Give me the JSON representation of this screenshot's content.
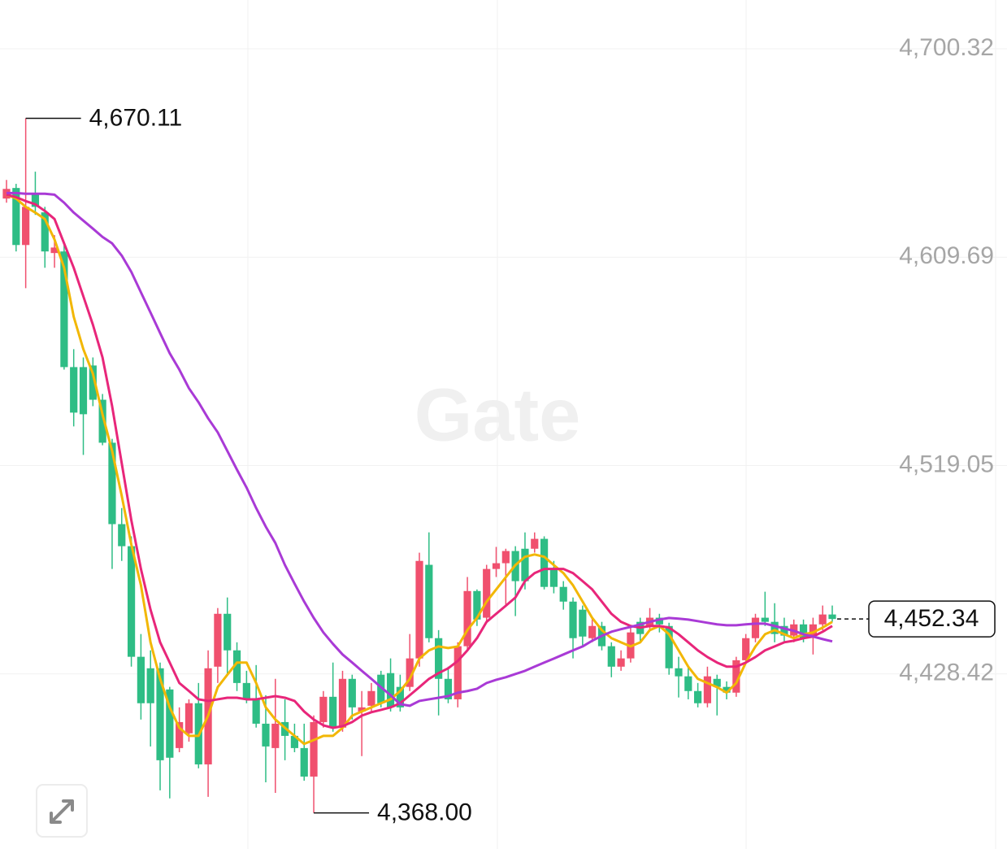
{
  "chart_data": {
    "type": "candlestick",
    "watermark": "Gate",
    "up_color": "#f0506e",
    "down_color": "#2ebd85",
    "grid": true,
    "ylim": [
      4352.3,
      4721.56
    ],
    "yticks": [
      {
        "value": 4428.42,
        "label": "4,428.42"
      },
      {
        "value": 4519.05,
        "label": "4,519.05"
      },
      {
        "value": 4609.69,
        "label": "4,609.69"
      },
      {
        "value": 4700.32,
        "label": "4,700.32"
      }
    ],
    "candles": {
      "open": [
        4635.2,
        4639.8,
        4615.0,
        4637.0,
        4629.2,
        4611.5,
        4612.2,
        4561.9,
        4561.9,
        4562.6,
        4547.7,
        4529.0,
        4493.6,
        4484.0,
        4435.9,
        4430.9,
        4430.9,
        4421.7,
        4396.2,
        4402.6,
        4415.7,
        4389.1,
        4431.6,
        4454.6,
        4438.7,
        4424.5,
        4417.4,
        4406.8,
        4396.2,
        4407.5,
        4401.5,
        4396.2,
        4383.8,
        4407.5,
        4418.5,
        4405.1,
        4426.3,
        4412.1,
        4414.6,
        4428.1,
        4428.8,
        4422.8,
        4422.8,
        4435.2,
        4475.9,
        4444.0,
        4426.3,
        4417.4,
        4440.5,
        4464.5,
        4452.9,
        4474.1,
        4476.6,
        4481.9,
        4482.9,
        4482.9,
        4487.2,
        4474.1,
        4466.3,
        4459.9,
        4456.4,
        4444.0,
        4449.3,
        4440.5,
        4431.6,
        4435.2,
        4451.1,
        4449.3,
        4452.9,
        4449.3,
        4430.9,
        4427.4,
        4421.0,
        4415.7,
        4426.3,
        4422.8,
        4420.3,
        4434.4,
        4444.0,
        4452.9,
        4451.1,
        4449.3,
        4445.1,
        4450.0,
        4445.1,
        4450.0,
        4454.3
      ],
      "high": [
        4643.3,
        4641.6,
        4670.11,
        4646.9,
        4631.6,
        4619.3,
        4615.7,
        4569.7,
        4566.1,
        4566.1,
        4550.2,
        4530.7,
        4500.6,
        4488.3,
        4445.8,
        4438.7,
        4433.4,
        4422.8,
        4413.9,
        4417.4,
        4424.5,
        4438.7,
        4457.1,
        4461.7,
        4442.2,
        4429.8,
        4432.3,
        4419.2,
        4426.3,
        4417.4,
        4406.8,
        4406.8,
        4410.4,
        4421.0,
        4433.4,
        4429.8,
        4428.1,
        4421.0,
        4424.5,
        4429.8,
        4435.2,
        4428.1,
        4445.8,
        4481.2,
        4490.0,
        4447.5,
        4431.6,
        4442.2,
        4470.6,
        4465.2,
        4475.9,
        4483.7,
        4482.9,
        4484.0,
        4490.0,
        4490.0,
        4488.3,
        4477.6,
        4468.8,
        4461.7,
        4458.2,
        4452.9,
        4451.1,
        4442.2,
        4438.7,
        4449.3,
        4452.9,
        4457.1,
        4454.6,
        4450.7,
        4435.9,
        4431.6,
        4424.5,
        4431.6,
        4428.1,
        4425.2,
        4435.9,
        4445.8,
        4454.6,
        4464.2,
        4459.2,
        4452.9,
        4452.1,
        4452.1,
        4452.9,
        4458.2,
        4458.2
      ],
      "low": [
        4633.4,
        4612.2,
        4596.2,
        4628.1,
        4605.1,
        4605.1,
        4560.8,
        4536.1,
        4523.7,
        4544.9,
        4527.9,
        4474.1,
        4477.6,
        4431.6,
        4408.6,
        4396.9,
        4377.8,
        4374.3,
        4394.4,
        4399.0,
        4387.4,
        4375.0,
        4424.5,
        4428.1,
        4421.0,
        4415.7,
        4405.1,
        4381.3,
        4376.7,
        4390.9,
        4394.4,
        4382.0,
        4368.0,
        4405.1,
        4403.3,
        4403.3,
        4408.6,
        4392.7,
        4412.1,
        4413.9,
        4412.1,
        4412.1,
        4421.0,
        4431.6,
        4442.2,
        4410.4,
        4415.7,
        4413.9,
        4438.7,
        4449.3,
        4451.1,
        4470.6,
        4458.2,
        4453.6,
        4465.2,
        4481.2,
        4465.2,
        4463.5,
        4456.4,
        4435.2,
        4440.5,
        4442.2,
        4438.7,
        4427.0,
        4429.8,
        4433.4,
        4442.2,
        4447.5,
        4446.5,
        4428.1,
        4418.2,
        4417.4,
        4413.9,
        4413.9,
        4410.4,
        4417.4,
        4418.5,
        4433.4,
        4442.2,
        4449.3,
        4442.2,
        4442.2,
        4442.2,
        4442.2,
        4436.9,
        4447.5,
        4451.1
      ],
      "close": [
        4639.4,
        4615.0,
        4631.6,
        4631.6,
        4612.2,
        4613.9,
        4561.9,
        4542.1,
        4541.4,
        4547.7,
        4529.0,
        4493.6,
        4484.0,
        4435.9,
        4415.7,
        4415.7,
        4390.9,
        4392.0,
        4407.5,
        4415.7,
        4389.1,
        4430.9,
        4454.6,
        4438.7,
        4424.5,
        4417.4,
        4406.8,
        4396.9,
        4406.8,
        4401.5,
        4396.2,
        4383.8,
        4407.5,
        4418.5,
        4405.1,
        4426.3,
        4413.9,
        4413.9,
        4421.0,
        4415.7,
        4413.9,
        4413.9,
        4435.2,
        4477.6,
        4444.0,
        4426.3,
        4417.4,
        4440.5,
        4464.5,
        4452.1,
        4474.1,
        4476.6,
        4481.9,
        4468.8,
        4468.8,
        4487.2,
        4466.3,
        4466.3,
        4459.9,
        4444.0,
        4444.7,
        4449.3,
        4440.5,
        4431.6,
        4435.2,
        4446.5,
        4445.8,
        4452.9,
        4450.0,
        4430.9,
        4427.4,
        4421.0,
        4415.7,
        4427.4,
        4422.8,
        4420.3,
        4434.4,
        4444.0,
        4452.9,
        4451.1,
        4445.8,
        4445.1,
        4450.0,
        4444.0,
        4450.0,
        4454.3,
        4452.34
      ]
    },
    "lines": [
      {
        "color": "#f2b705",
        "values": [
          4636.9,
          4635.2,
          4631.6,
          4629.1,
          4626.3,
          4617.4,
          4605.1,
          4583.8,
          4569.7,
          4559.0,
          4541.3,
          4525.4,
          4505.9,
          4484.7,
          4467.0,
          4442.2,
          4426.3,
          4413.9,
          4405.0,
          4401.5,
          4401.5,
          4410.3,
          4422.7,
          4428.1,
          4433.4,
          4433.4,
          4424.5,
          4413.9,
          4408.6,
          4405.0,
          4401.5,
          4398.0,
          4399.7,
          4401.5,
          4401.5,
          4405.0,
          4410.3,
          4412.1,
          4413.9,
          4415.7,
          4417.4,
          4421.0,
          4426.3,
          4435.1,
          4438.7,
          4440.4,
          4439.7,
          4440.4,
          4447.5,
          4452.8,
          4459.9,
          4465.2,
          4470.5,
          4475.8,
          4479.4,
          4480.4,
          4479.4,
          4475.8,
          4472.3,
          4467.0,
          4459.9,
          4452.8,
          4447.5,
          4444.0,
          4442.2,
          4440.4,
          4442.2,
          4447.5,
          4449.3,
          4445.7,
          4438.7,
          4431.6,
          4426.3,
          4424.5,
          4422.7,
          4420.3,
          4424.5,
          4433.4,
          4440.4,
          4445.7,
          4447.5,
          4445.7,
          4444.0,
          4445.7,
          4446.5,
          4448.6,
          4451.1
        ]
      },
      {
        "color": "#e8267a",
        "values": [
          4636.9,
          4635.8,
          4634.1,
          4632.7,
          4629.8,
          4626.3,
          4615.7,
          4605.1,
          4592.7,
          4580.3,
          4566.1,
          4544.9,
          4520.1,
          4495.3,
          4474.1,
          4456.4,
          4442.2,
          4433.4,
          4424.5,
          4421.0,
          4417.4,
          4416.7,
          4417.4,
          4418.1,
          4418.1,
          4417.4,
          4417.4,
          4418.1,
          4418.8,
          4418.1,
          4416.7,
          4412.1,
          4408.6,
          4406.1,
          4405.0,
          4405.7,
          4407.5,
          4410.3,
          4411.8,
          4412.8,
          4413.9,
          4415.7,
          4419.2,
          4422.7,
          4426.3,
          4428.8,
          4430.9,
          4434.1,
          4438.7,
          4444.0,
          4451.1,
          4454.6,
          4458.1,
          4461.7,
          4468.8,
          4472.3,
          4474.1,
          4474.1,
          4474.1,
          4472.3,
          4468.8,
          4465.2,
          4459.9,
          4454.6,
          4451.1,
          4449.3,
          4448.6,
          4449.3,
          4449.3,
          4448.6,
          4445.7,
          4442.2,
          4438.7,
          4435.8,
          4433.4,
          4431.6,
          4431.6,
          4433.4,
          4435.8,
          4438.7,
          4440.4,
          4442.2,
          4442.9,
          4444.0,
          4444.7,
          4446.8,
          4449.3
        ]
      },
      {
        "color": "#a93ad6",
        "values": [
          4637.6,
          4637.6,
          4637.3,
          4637.3,
          4637.3,
          4636.9,
          4633.4,
          4629.1,
          4625.6,
          4622.1,
          4618.5,
          4615.7,
          4610.4,
          4603.3,
          4594.4,
          4585.6,
          4576.7,
          4567.9,
          4560.8,
          4552.7,
          4546.6,
          4539.6,
          4533.5,
          4525.4,
          4517.3,
          4509.5,
          4500.6,
          4492.5,
          4485.4,
          4475.8,
          4467.7,
          4459.9,
          4452.8,
          4446.5,
          4441.5,
          4436.9,
          4433.4,
          4429.8,
          4426.3,
          4422.7,
          4419.2,
          4415.3,
          4414.6,
          4416.7,
          4417.4,
          4418.1,
          4418.8,
          4420.3,
          4421.0,
          4422.0,
          4424.5,
          4425.9,
          4427.0,
          4428.4,
          4429.8,
          4431.6,
          4433.4,
          4435.1,
          4436.9,
          4438.7,
          4440.4,
          4442.9,
          4445.0,
          4446.8,
          4447.9,
          4448.9,
          4450.0,
          4451.1,
          4452.1,
          4452.8,
          4452.5,
          4452.1,
          4451.4,
          4450.7,
          4450.0,
          4449.6,
          4449.6,
          4450.0,
          4450.3,
          4450.3,
          4449.3,
          4448.2,
          4447.2,
          4445.7,
          4444.7,
          4443.6,
          4442.6
        ]
      }
    ],
    "annotations": [
      {
        "kind": "high",
        "value": 4670.11,
        "label": "4,670.11"
      },
      {
        "kind": "low",
        "value": 4368.0,
        "label": "4,368.00"
      },
      {
        "kind": "last",
        "value": 4452.34,
        "label": "4,452.34"
      }
    ]
  }
}
